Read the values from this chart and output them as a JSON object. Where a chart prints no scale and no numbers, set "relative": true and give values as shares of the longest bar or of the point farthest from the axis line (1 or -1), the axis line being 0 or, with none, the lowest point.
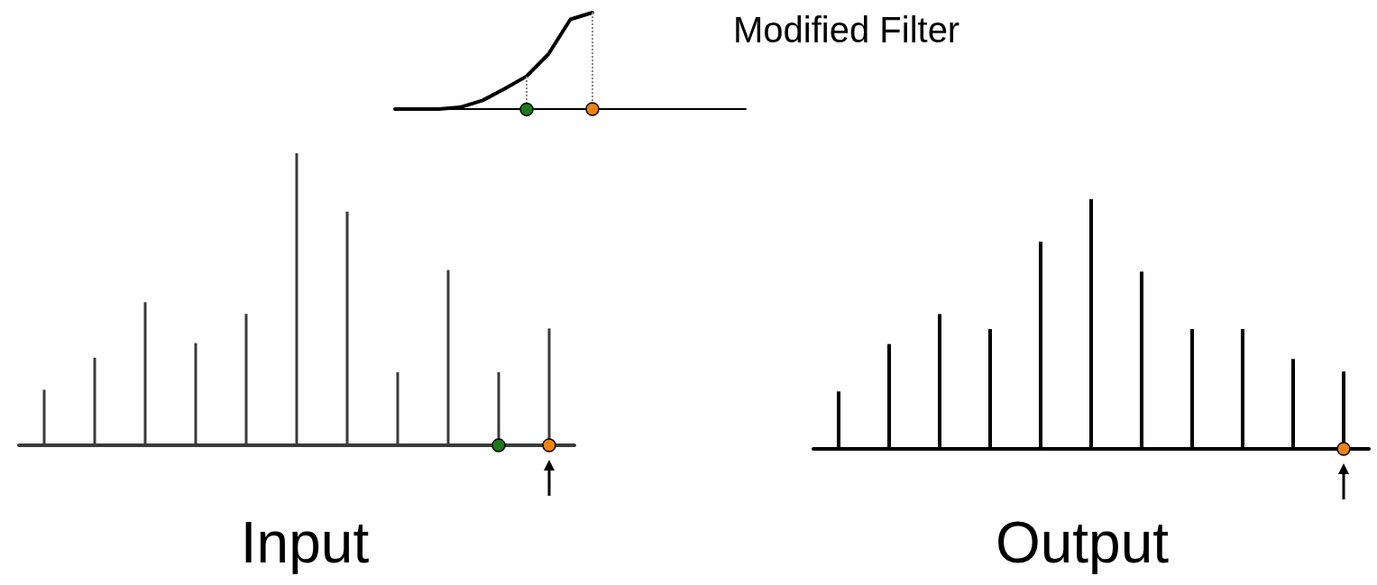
{
  "chart_data": [
    {
      "type": "line",
      "title": "Modified Filter",
      "relative": true,
      "categories": [
        null,
        null,
        null,
        null,
        null,
        null,
        null,
        null,
        null,
        null,
        null,
        null,
        null,
        null,
        null,
        null,
        null
      ],
      "series": [
        {
          "color": "#000000",
          "values": [
            0,
            0,
            0,
            0.02,
            0.09,
            0.21,
            0.34,
            0.57,
            0.93,
            1,
            null,
            null,
            null,
            null,
            null,
            null,
            null
          ]
        }
      ]
    },
    {
      "type": "bar",
      "title": "Input",
      "relative": true,
      "categories": [
        null,
        null,
        null,
        null,
        null,
        null,
        null,
        null,
        null,
        null,
        null
      ],
      "series": [
        {
          "color": "#3a3a3a",
          "values": [
            0.19,
            0.3,
            0.49,
            0.35,
            0.45,
            1,
            0.8,
            0.25,
            0.6,
            0.25,
            0.4
          ]
        }
      ]
    },
    {
      "type": "bar",
      "title": "Output",
      "relative": true,
      "categories": [
        null,
        null,
        null,
        null,
        null,
        null,
        null,
        null,
        null,
        null,
        null
      ],
      "series": [
        {
          "color": "#000000",
          "values": [
            0.23,
            0.42,
            0.54,
            0.48,
            0.83,
            1,
            0.71,
            0.48,
            0.48,
            0.36,
            0.31
          ]
        }
      ]
    }
  ]
}
